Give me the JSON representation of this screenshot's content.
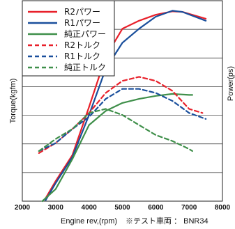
{
  "chart_data": {
    "type": "line",
    "xlabel": "Engine rev,(rpm)",
    "ylabel": "Torque(kgfm)",
    "ylabel_right": "Power(ps)",
    "note": "※テスト車両 ： BNR34",
    "xlim": [
      2000,
      8000
    ],
    "x_ticks": [
      "2000",
      "3000",
      "4000",
      "5000",
      "6000",
      "7000",
      "8000"
    ],
    "grid": "horizontal",
    "legend_position": "top-left",
    "series": [
      {
        "name": "R2パワー",
        "style": "solid",
        "color": "#e8202a",
        "x": [
          2700,
          3000,
          3500,
          4000,
          4500,
          5000,
          5500,
          6000,
          6500,
          6800,
          7500
        ],
        "y": [
          0.015,
          0.1,
          0.23,
          0.47,
          0.72,
          0.86,
          0.9,
          0.93,
          0.947,
          0.944,
          0.91
        ]
      },
      {
        "name": "R1パワー",
        "style": "solid",
        "color": "#1a4f9c",
        "x": [
          2700,
          3000,
          3500,
          4000,
          4500,
          5000,
          5500,
          6000,
          6500,
          6800,
          7500
        ],
        "y": [
          0.005,
          0.09,
          0.22,
          0.43,
          0.66,
          0.79,
          0.86,
          0.92,
          0.95,
          0.944,
          0.9
        ]
      },
      {
        "name": "純正パワー",
        "style": "solid",
        "color": "#3f8f4a",
        "x": [
          2600,
          3000,
          3500,
          4000,
          4500,
          5000,
          5500,
          6000,
          6500,
          7000,
          7100
        ],
        "y": [
          0.0,
          0.06,
          0.21,
          0.38,
          0.45,
          0.49,
          0.51,
          0.525,
          0.535,
          0.53,
          0.53
        ]
      },
      {
        "name": "R2トルク",
        "style": "dashed",
        "color": "#e8202a",
        "x": [
          2500,
          3000,
          3500,
          4000,
          4500,
          5000,
          5500,
          6000,
          6500,
          7000,
          7400
        ],
        "y": [
          0.24,
          0.29,
          0.36,
          0.44,
          0.54,
          0.6,
          0.62,
          0.6,
          0.55,
          0.46,
          0.44
        ]
      },
      {
        "name": "R1トルク",
        "style": "dashed",
        "color": "#1a4f9c",
        "x": [
          2500,
          3000,
          3500,
          4000,
          4500,
          5000,
          5500,
          6000,
          6500,
          7000,
          7500
        ],
        "y": [
          0.25,
          0.29,
          0.36,
          0.42,
          0.51,
          0.56,
          0.56,
          0.54,
          0.5,
          0.44,
          0.41
        ]
      },
      {
        "name": "純正トルク",
        "style": "dashed",
        "color": "#3f8f4a",
        "x": [
          2500,
          3000,
          3500,
          4000,
          4500,
          5000,
          5500,
          6000,
          6500,
          7000,
          7100
        ],
        "y": [
          0.25,
          0.31,
          0.36,
          0.44,
          0.46,
          0.43,
          0.38,
          0.33,
          0.3,
          0.26,
          0.25
        ]
      }
    ]
  }
}
